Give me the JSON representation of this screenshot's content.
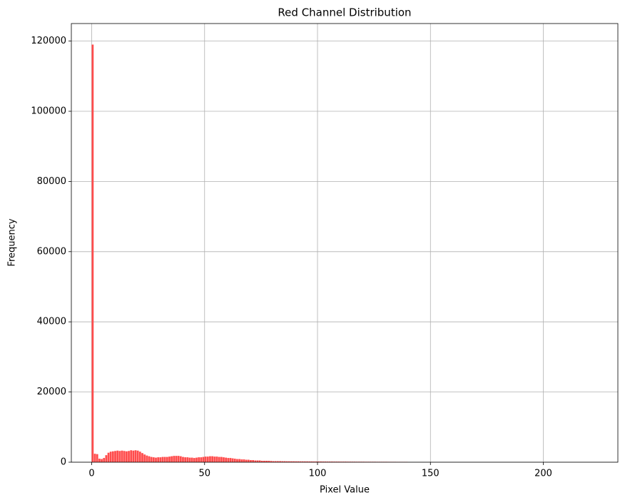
{
  "chart_data": {
    "type": "histogram",
    "title": "Red Channel Distribution",
    "x_label": "Pixel Value",
    "y_label": "Frequency",
    "color": "#ff4c4c",
    "grid": true,
    "xlim": [
      -9,
      233
    ],
    "ylim": [
      0,
      125000
    ],
    "xticks": [
      0,
      50,
      100,
      150,
      200
    ],
    "yticks": [
      0,
      20000,
      40000,
      60000,
      80000,
      100000,
      120000
    ],
    "bins": [
      0,
      1,
      2,
      3,
      4,
      5,
      6,
      7,
      8,
      9,
      10,
      11,
      12,
      13,
      14,
      15,
      16,
      17,
      18,
      19,
      20,
      21,
      22,
      23,
      24,
      25,
      26,
      27,
      28,
      29,
      30,
      31,
      32,
      33,
      34,
      35,
      36,
      37,
      38,
      39,
      40,
      41,
      42,
      43,
      44,
      45,
      46,
      47,
      48,
      49,
      50,
      51,
      52,
      53,
      54,
      55,
      56,
      57,
      58,
      59,
      60,
      61,
      62,
      63,
      64,
      65,
      66,
      67,
      68,
      69,
      70,
      71,
      72,
      73,
      74,
      75,
      76,
      77,
      78,
      79,
      80,
      81,
      82,
      83,
      84,
      85,
      86,
      87,
      88,
      89,
      90,
      91,
      92,
      93,
      94,
      95,
      96,
      97,
      98,
      99,
      100,
      101,
      102,
      103,
      104,
      105,
      106,
      107,
      108,
      109,
      110,
      111,
      112,
      113,
      114,
      115,
      116,
      117,
      118,
      119,
      120,
      121,
      122,
      123,
      124,
      125,
      126,
      127,
      128,
      129,
      130,
      131,
      132,
      133,
      134,
      135,
      136,
      137,
      138,
      139,
      140,
      141,
      142,
      143,
      144,
      145,
      146,
      147,
      148,
      149,
      150,
      151,
      152,
      153,
      154,
      155,
      156,
      157,
      158,
      159,
      160,
      161,
      162,
      163,
      164,
      165,
      166,
      167,
      168,
      169,
      170,
      171,
      172,
      173,
      174,
      175,
      176,
      177,
      178,
      179,
      180,
      181,
      182,
      183,
      184,
      185,
      186,
      187,
      188,
      189,
      190,
      191,
      192,
      193,
      194,
      195,
      196,
      197,
      198,
      199,
      200,
      201,
      202,
      203,
      204,
      205,
      206,
      207,
      208,
      209,
      210,
      211,
      212,
      213,
      214,
      215,
      216,
      217,
      218,
      219,
      220,
      221,
      222
    ],
    "values": [
      119000,
      2400,
      2300,
      1000,
      900,
      1200,
      2000,
      2700,
      3000,
      3100,
      3200,
      3300,
      3200,
      3300,
      3200,
      3100,
      3200,
      3400,
      3300,
      3400,
      3300,
      3000,
      2600,
      2200,
      1900,
      1700,
      1500,
      1400,
      1300,
      1400,
      1400,
      1500,
      1500,
      1500,
      1600,
      1700,
      1800,
      1800,
      1800,
      1700,
      1500,
      1400,
      1400,
      1300,
      1300,
      1200,
      1300,
      1400,
      1400,
      1500,
      1600,
      1600,
      1700,
      1700,
      1600,
      1600,
      1500,
      1500,
      1400,
      1300,
      1200,
      1200,
      1100,
      1000,
      900,
      900,
      800,
      800,
      700,
      700,
      600,
      600,
      500,
      500,
      500,
      400,
      400,
      400,
      400,
      350,
      300,
      300,
      300,
      300,
      280,
      280,
      260,
      260,
      250,
      250,
      240,
      240,
      230,
      230,
      220,
      220,
      210,
      210,
      200,
      200,
      200,
      200,
      190,
      190,
      180,
      180,
      180,
      170,
      170,
      170,
      160,
      160,
      160,
      150,
      150,
      150,
      150,
      140,
      140,
      140,
      140,
      130,
      130,
      130,
      130,
      130,
      120,
      120,
      120,
      120,
      120,
      110,
      110,
      110,
      110,
      100,
      100,
      100,
      100,
      100,
      0,
      0,
      0,
      0,
      0,
      0,
      0,
      0,
      0,
      0,
      0,
      0,
      0,
      0,
      0,
      0,
      0,
      0,
      0,
      0,
      0,
      0,
      0,
      0,
      0,
      0,
      0,
      0,
      0,
      0,
      0,
      0,
      0,
      0,
      0,
      0,
      0,
      0,
      0,
      0,
      0,
      0,
      0,
      0,
      0,
      0,
      0,
      0,
      0,
      0,
      0,
      0,
      0,
      0,
      0,
      0,
      0,
      0,
      0,
      0,
      0,
      0,
      0,
      0,
      0,
      0,
      0,
      0,
      0,
      0,
      0,
      0,
      0,
      0,
      0,
      0,
      0,
      0,
      0,
      0,
      0,
      0
    ]
  }
}
